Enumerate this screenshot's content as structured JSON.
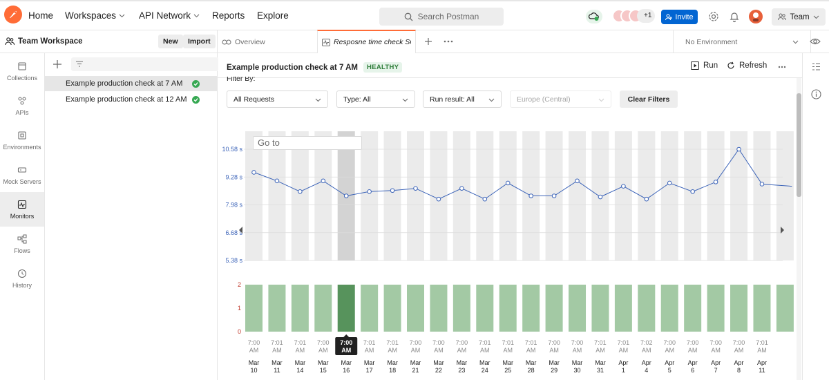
{
  "topbar": {
    "nav": [
      {
        "label": "Home",
        "has_menu": false
      },
      {
        "label": "Workspaces",
        "has_menu": true
      },
      {
        "label": "API Network",
        "has_menu": true
      },
      {
        "label": "Reports",
        "has_menu": false
      },
      {
        "label": "Explore",
        "has_menu": false
      }
    ],
    "search_placeholder": "Search Postman",
    "avatars_more": "+1",
    "invite_label": "Invite",
    "team_label": "Team"
  },
  "workspace": {
    "title": "Team Workspace",
    "new_label": "New",
    "import_label": "Import"
  },
  "sidebar": {
    "items": [
      {
        "label": "Collections",
        "icon": "collections-icon",
        "active": false
      },
      {
        "label": "APIs",
        "icon": "apis-icon",
        "active": false
      },
      {
        "label": "Environments",
        "icon": "environments-icon",
        "active": false
      },
      {
        "label": "Mock Servers",
        "icon": "mock-servers-icon",
        "active": false
      },
      {
        "label": "Monitors",
        "icon": "monitors-icon",
        "active": true
      },
      {
        "label": "Flows",
        "icon": "flows-icon",
        "active": false
      },
      {
        "label": "History",
        "icon": "history-icon",
        "active": false
      }
    ]
  },
  "monitors": [
    {
      "name": "Example production check at 7 AM",
      "status": "healthy",
      "selected": true
    },
    {
      "name": "Example production check at 12 AM",
      "status": "healthy",
      "selected": false
    }
  ],
  "tabs": [
    {
      "label": "Overview",
      "active": false
    },
    {
      "label": "Resposne time check SO",
      "active": true
    }
  ],
  "environment": "No Environment",
  "monitor_header": {
    "title": "Example production check at 7 AM",
    "status": "HEALTHY",
    "run_label": "Run",
    "refresh_label": "Refresh"
  },
  "filters": {
    "label": "Filter By:",
    "requests": "All Requests",
    "type": "Type: All",
    "run_result": "Run result: All",
    "region": "Europe (Central)",
    "clear_label": "Clear Filters"
  },
  "goto_placeholder": "Go to",
  "colors": {
    "accent": "#ff6c37",
    "primary": "#0265d2",
    "line": "#3b63b8",
    "bar_green": "#a3c9a4",
    "bar_green_selected": "#57935c",
    "healthy": "#36a852"
  },
  "chart_data": [
    {
      "type": "line",
      "title": "",
      "ylabel": "",
      "y_tick_labels": [
        "10.58 s",
        "9.28 s",
        "7.98 s",
        "6.68 s",
        "5.38 s"
      ],
      "y_ticks": [
        10.58,
        9.28,
        7.98,
        6.68,
        5.38
      ],
      "ylim": [
        5.38,
        10.58
      ],
      "selected_index": 4,
      "x_times": [
        "7:00 AM",
        "7:01 AM",
        "7:01 AM",
        "7:00 AM",
        "7:00 AM",
        "7:01 AM",
        "7:01 AM",
        "7:00 AM",
        "7:00 AM",
        "7:00 AM",
        "7:01 AM",
        "7:01 AM",
        "7:01 AM",
        "7:00 AM",
        "7:00 AM",
        "7:01 AM",
        "7:01 AM",
        "7:02 AM",
        "7:00 AM",
        "7:00 AM",
        "7:00 AM",
        "7:00 AM",
        "7:01 AM"
      ],
      "x_dates": [
        "Mar 10",
        "Mar 11",
        "Mar 14",
        "Mar 15",
        "Mar 16",
        "Mar 17",
        "Mar 18",
        "Mar 21",
        "Mar 22",
        "Mar 23",
        "Mar 24",
        "Mar 25",
        "Mar 28",
        "Mar 29",
        "Mar 30",
        "Mar 31",
        "Apr 1",
        "Apr 4",
        "Apr 5",
        "Apr 6",
        "Apr 7",
        "Apr 8",
        "Apr 11"
      ],
      "values": [
        9.5,
        9.1,
        8.6,
        9.1,
        8.4,
        8.6,
        8.65,
        8.75,
        8.25,
        8.75,
        8.25,
        9.0,
        8.4,
        8.4,
        9.1,
        8.35,
        8.85,
        8.25,
        9.0,
        8.6,
        9.05,
        10.58,
        8.95
      ],
      "trailing_value": 8.85
    },
    {
      "type": "bar",
      "title": "",
      "y_tick_labels": [
        "2",
        "1",
        "0"
      ],
      "ylim": [
        0,
        2
      ],
      "values": [
        2,
        2,
        2,
        2,
        2,
        2,
        2,
        2,
        2,
        2,
        2,
        2,
        2,
        2,
        2,
        2,
        2,
        2,
        2,
        2,
        2,
        2,
        2,
        2
      ],
      "selected_index": 4
    }
  ]
}
